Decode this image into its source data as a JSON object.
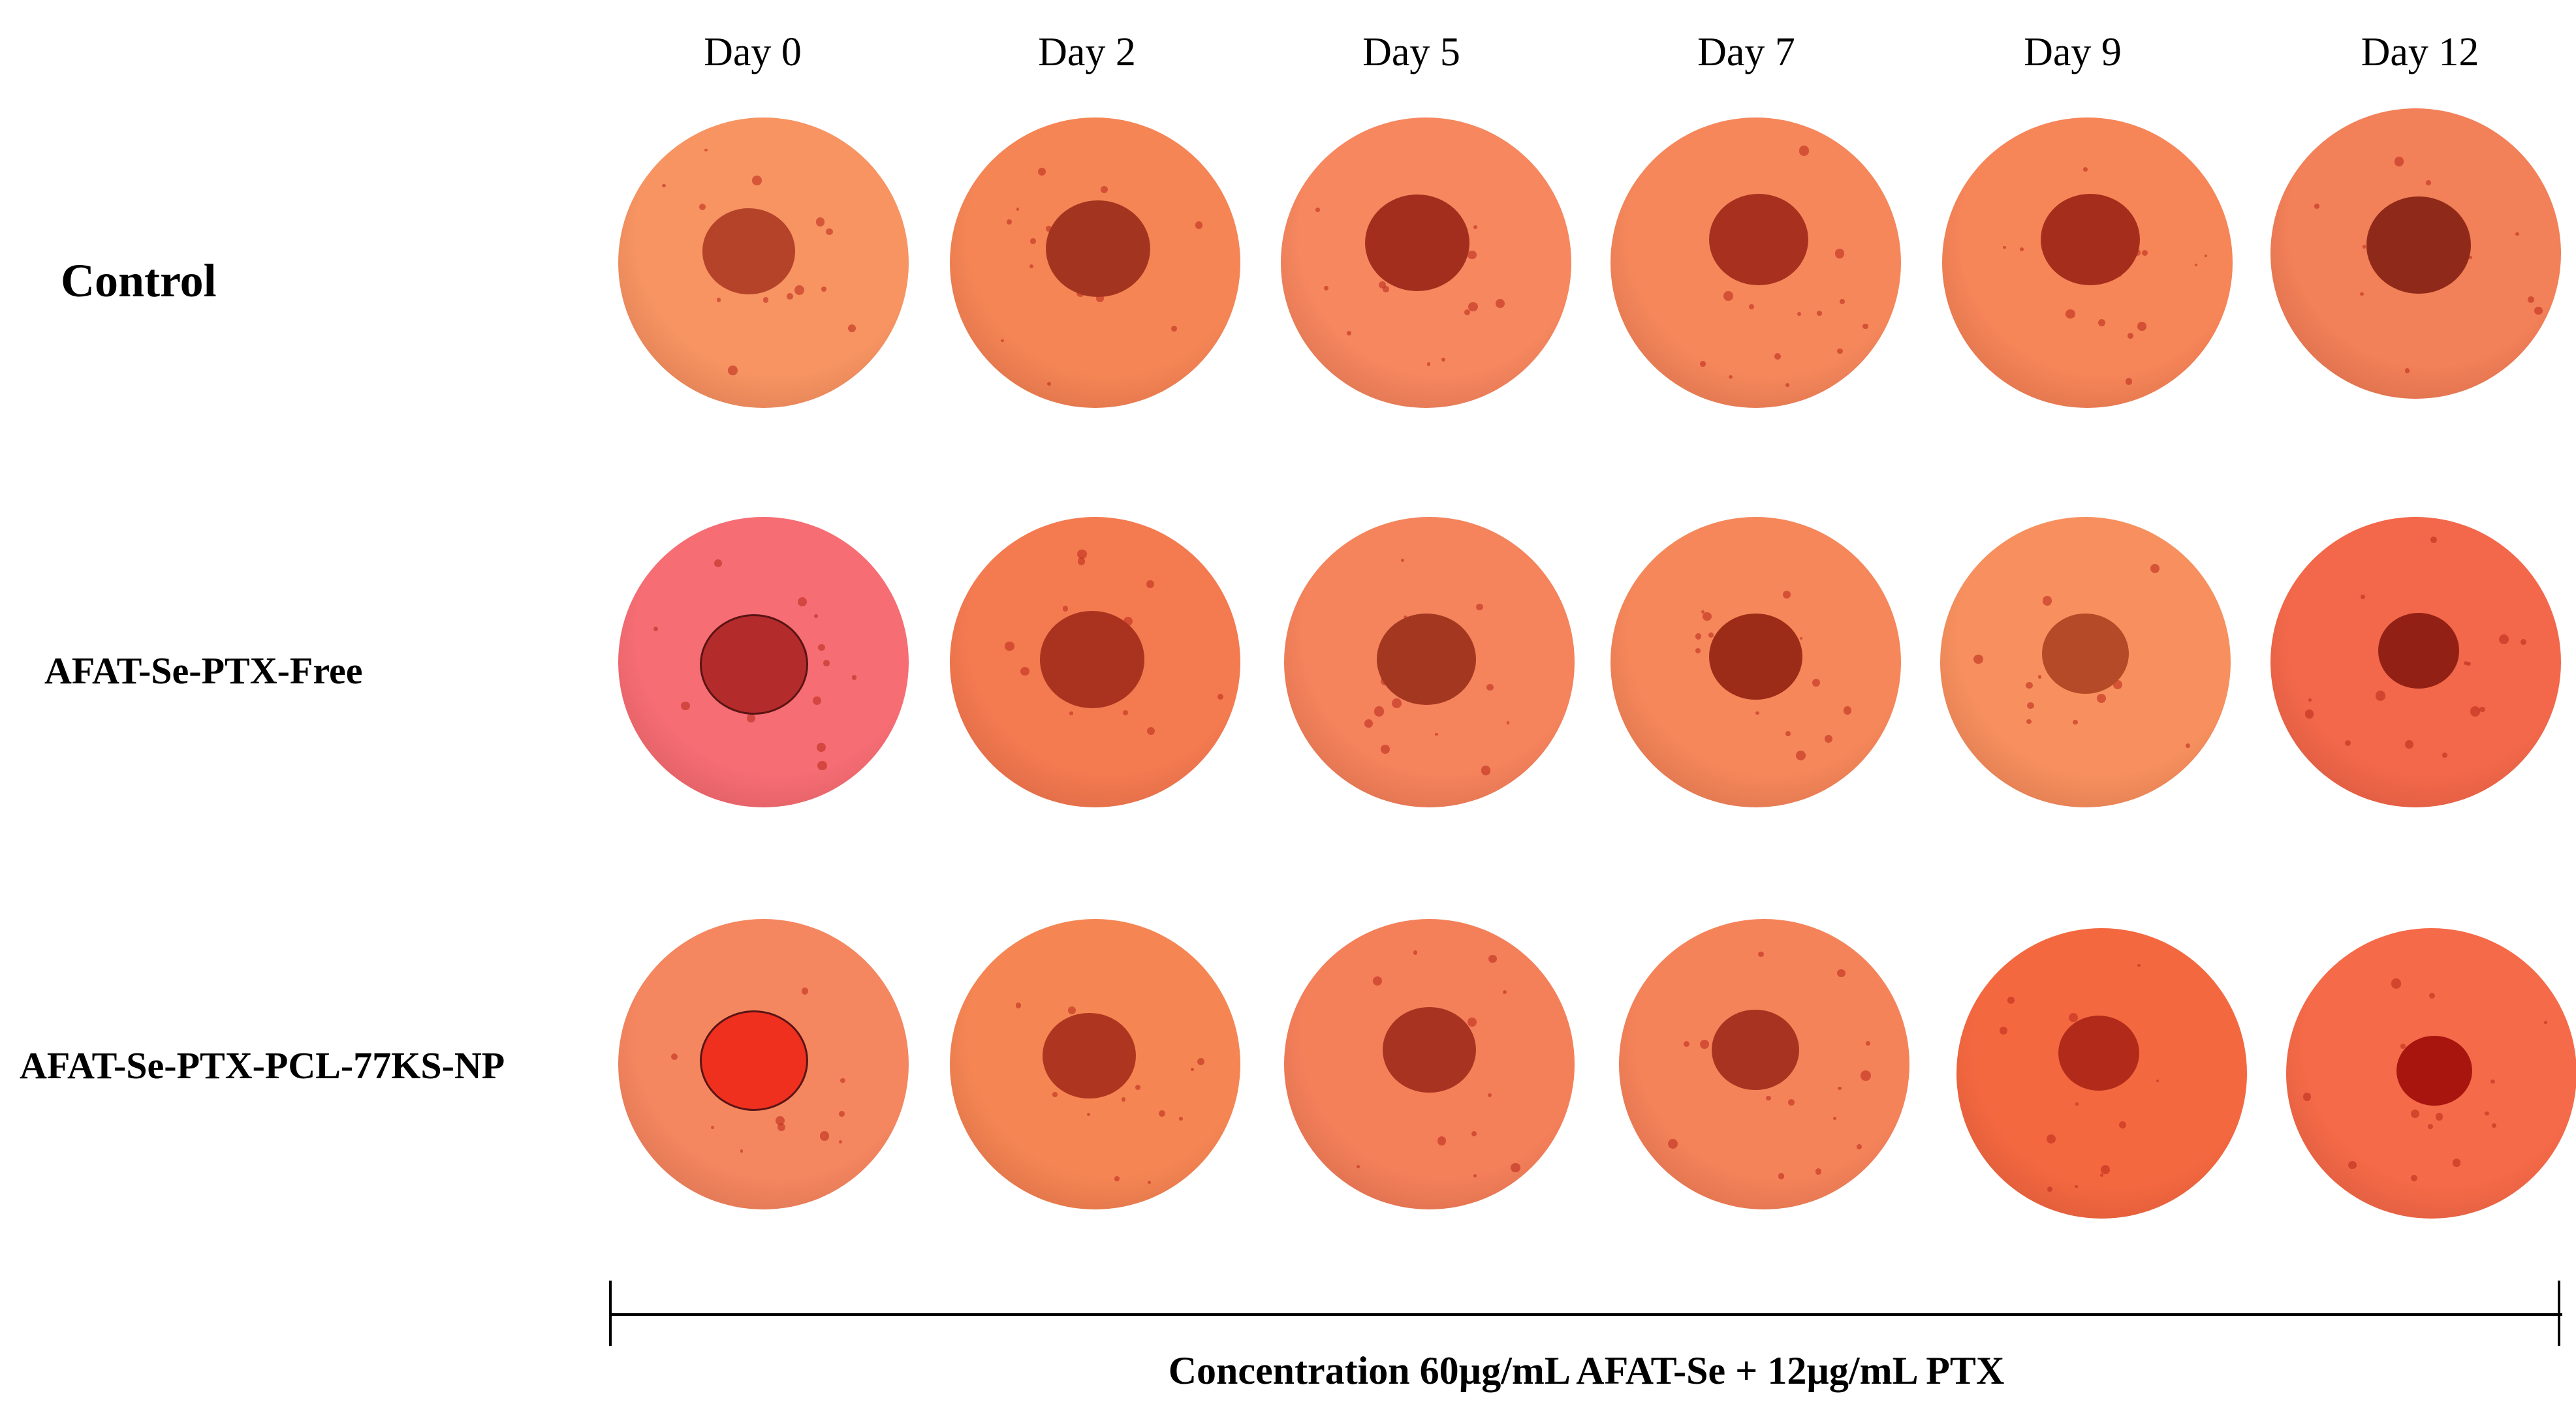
{
  "columns": [
    "Day 0",
    "Day 2",
    "Day 5",
    "Day 7",
    "Day 9",
    "Day 12"
  ],
  "rows": [
    "Control",
    "AFAT-Se-PTX-Free",
    "AFAT-Se-PTX-PCL-77KS-NP"
  ],
  "concentration_label": "Concentration  60µg/mL AFAT-Se +  12µg/mL PTX",
  "colors": {
    "well_orange": "#f58a5a",
    "well_pink": "#f56e74",
    "well_red_orange": "#f46840",
    "spheroid_dark": "#a8331f",
    "spheroid_red": "#f0301e",
    "background": "#ffffff",
    "text": "#000000"
  }
}
